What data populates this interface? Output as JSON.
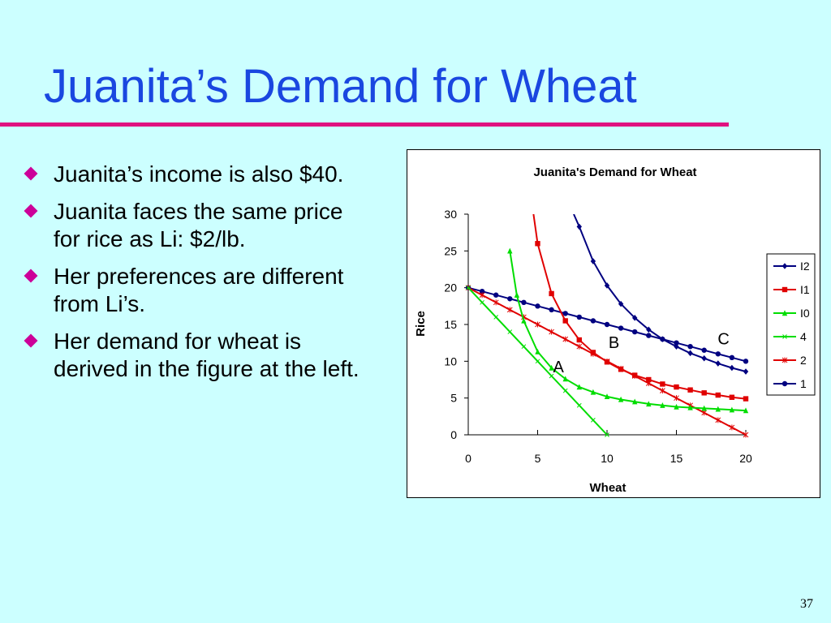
{
  "slide": {
    "title": "Juanita’s Demand for Wheat",
    "page_number": "37",
    "colors": {
      "title": "#1a47e0",
      "rule": "#e0117f",
      "bullet": "#cc0099",
      "background": "#ccffff"
    },
    "bullets": [
      "Juanita’s income is also $40.",
      "Juanita faces the same price for rice as Li: $2/lb.",
      "Her preferences are different from Li’s.",
      "Her demand for wheat is derived in the figure at the left."
    ]
  },
  "chart_data": {
    "type": "line",
    "title": "Juanita's Demand for Wheat",
    "xlabel": "Wheat",
    "ylabel": "Rice",
    "xlim": [
      0,
      20
    ],
    "ylim": [
      0,
      30
    ],
    "xticks": [
      0,
      5,
      10,
      15,
      20
    ],
    "yticks": [
      0,
      5,
      10,
      15,
      20,
      25,
      30
    ],
    "legend_position": "right",
    "grid": false,
    "series": [
      {
        "name": "I2",
        "color": "#000080",
        "marker": "diamond",
        "x": [
          7.6,
          8,
          9,
          10,
          11,
          12,
          13,
          14,
          15,
          16,
          17,
          18,
          19,
          20
        ],
        "y": [
          30,
          28.3,
          23.6,
          20.3,
          17.8,
          15.9,
          14.3,
          13,
          12,
          11.1,
          10.4,
          9.7,
          9.1,
          8.6
        ]
      },
      {
        "name": "I1",
        "color": "#e00000",
        "marker": "square",
        "x": [
          4.7,
          5,
          6,
          7,
          8,
          9,
          10,
          11,
          12,
          13,
          14,
          15,
          16,
          17,
          18,
          19,
          20
        ],
        "y": [
          30,
          26,
          19.2,
          15.5,
          12.9,
          11.2,
          9.9,
          8.9,
          8.1,
          7.5,
          6.9,
          6.5,
          6.1,
          5.7,
          5.4,
          5.1,
          4.9
        ]
      },
      {
        "name": "I0",
        "color": "#00dd00",
        "marker": "triangle",
        "x": [
          3,
          3.5,
          4,
          5,
          6,
          7,
          8,
          9,
          10,
          11,
          12,
          13,
          14,
          15,
          16,
          17,
          18,
          19,
          20
        ],
        "y": [
          25,
          19,
          15.5,
          11.3,
          9.1,
          7.6,
          6.5,
          5.8,
          5.2,
          4.8,
          4.5,
          4.2,
          4,
          3.8,
          3.7,
          3.6,
          3.5,
          3.4,
          3.3
        ]
      },
      {
        "name": "4",
        "color": "#00dd00",
        "marker": "x",
        "x": [
          0,
          1,
          2,
          3,
          4,
          5,
          6,
          7,
          8,
          9,
          10
        ],
        "y": [
          20,
          18,
          16,
          14,
          12,
          10,
          8,
          6,
          4,
          2,
          0
        ]
      },
      {
        "name": "2",
        "color": "#e00000",
        "marker": "star",
        "x": [
          0,
          1,
          2,
          3,
          4,
          5,
          6,
          7,
          8,
          9,
          10,
          11,
          12,
          13,
          14,
          15,
          16,
          17,
          18,
          19,
          20
        ],
        "y": [
          20,
          19,
          18,
          17,
          16,
          15,
          14,
          13,
          12,
          11,
          10,
          9,
          8,
          7,
          6,
          5,
          4,
          3,
          2,
          1,
          0
        ]
      },
      {
        "name": "1",
        "color": "#000080",
        "marker": "circle",
        "x": [
          0,
          1,
          2,
          3,
          4,
          5,
          6,
          7,
          8,
          9,
          10,
          11,
          12,
          13,
          14,
          15,
          16,
          17,
          18,
          19,
          20
        ],
        "y": [
          20,
          19.5,
          19,
          18.5,
          18,
          17.5,
          17,
          16.5,
          16,
          15.5,
          15,
          14.5,
          14,
          13.5,
          13,
          12.5,
          12,
          11.5,
          11,
          10.5,
          10
        ]
      }
    ],
    "annotations": [
      {
        "text": "A",
        "x": 6.5,
        "y": 8.5
      },
      {
        "text": "B",
        "x": 10.5,
        "y": 11.8
      },
      {
        "text": "C",
        "x": 18.4,
        "y": 12.3
      }
    ]
  }
}
